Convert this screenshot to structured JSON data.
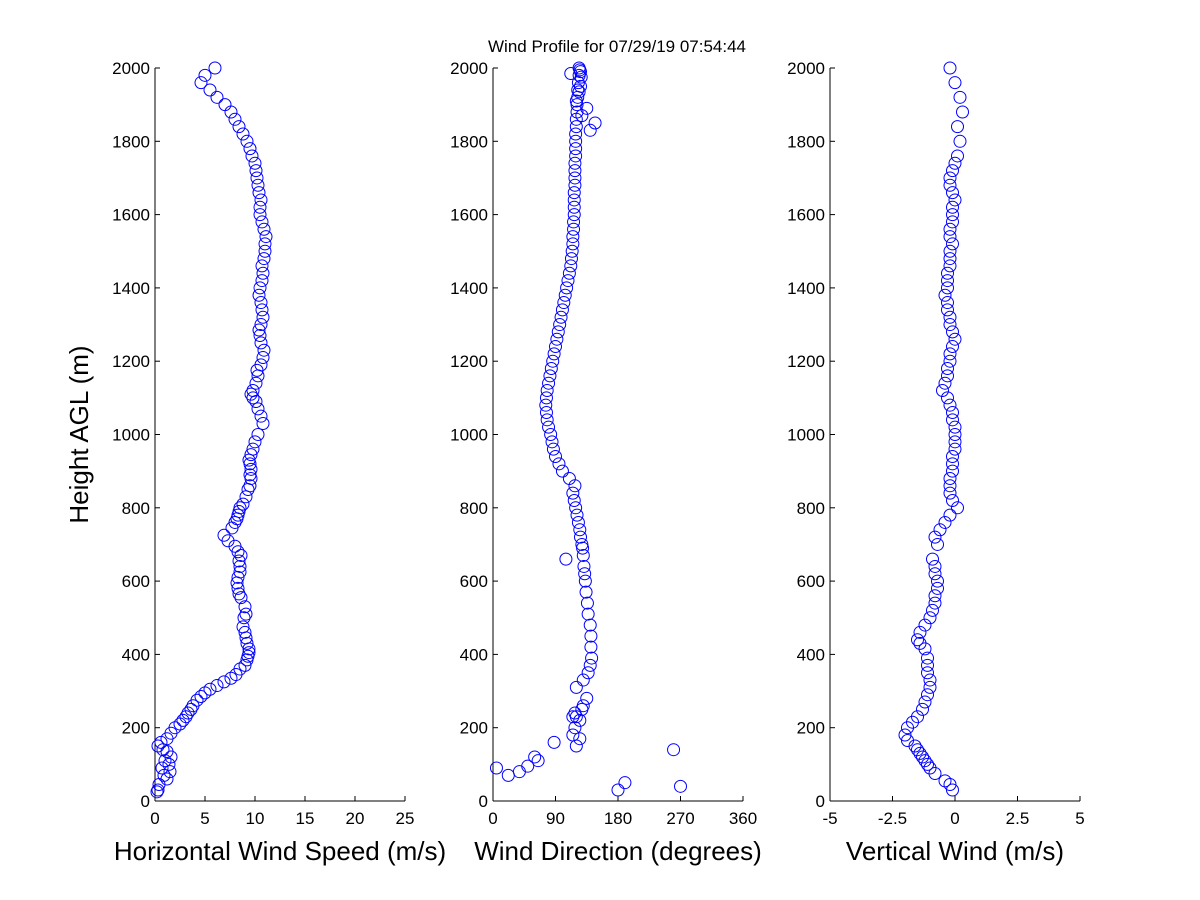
{
  "title": "Wind Profile for  07/29/19 07:54:44",
  "colors": {
    "marker": "#0000ff",
    "axis": "#000000",
    "background": "#ffffff"
  },
  "chart_data": [
    {
      "type": "scatter",
      "xlabel": "Horizontal Wind Speed (m/s)",
      "ylabel": "Height AGL (m)",
      "xlim": [
        0,
        25
      ],
      "ylim": [
        0,
        2000
      ],
      "xticks": [
        0,
        5,
        10,
        15,
        20,
        25
      ],
      "yticks": [
        0,
        200,
        400,
        600,
        800,
        1000,
        1200,
        1400,
        1600,
        1800,
        2000
      ],
      "grid": false,
      "x": [
        0.3,
        0.4,
        0.2,
        1.2,
        0.9,
        1.5,
        0.7,
        1.4,
        1.0,
        1.6,
        1.2,
        0.8,
        0.3,
        0.6,
        1.2,
        1.6,
        2.0,
        2.5,
        2.8,
        3.1,
        3.3,
        3.6,
        3.8,
        4.2,
        4.6,
        5.0,
        5.5,
        6.2,
        6.9,
        7.6,
        8.1,
        8.5,
        9.0,
        9.2,
        9.3,
        9.4,
        9.4,
        9.2,
        9.1,
        9.0,
        8.8,
        8.9,
        9.1,
        9.0,
        8.6,
        8.4,
        8.3,
        8.2,
        8.3,
        8.5,
        8.5,
        8.4,
        8.6,
        8.3,
        8.0,
        7.3,
        6.9,
        7.7,
        8.0,
        8.2,
        8.3,
        8.4,
        8.5,
        8.8,
        9.1,
        9.3,
        9.5,
        9.6,
        9.5,
        9.6,
        9.5,
        9.4,
        9.6,
        9.8,
        10.0,
        10.3,
        10.8,
        10.6,
        10.3,
        10.1,
        9.8,
        9.6,
        9.8,
        10.1,
        10.3,
        10.2,
        10.6,
        10.8,
        10.9,
        10.6,
        10.5,
        10.4,
        10.6,
        10.8,
        10.7,
        10.6,
        10.4,
        10.5,
        10.7,
        10.8,
        10.7,
        10.9,
        11.0,
        11.0,
        11.1,
        10.9,
        10.7,
        10.5,
        10.5,
        10.6,
        10.4,
        10.3,
        10.2,
        10.1,
        10.0,
        9.7,
        9.5,
        9.2,
        8.8,
        8.4,
        8.0,
        7.6,
        7.0,
        6.2,
        5.5,
        4.6,
        5.0,
        6.0
      ],
      "y": [
        30,
        45,
        25,
        60,
        70,
        80,
        90,
        100,
        110,
        120,
        135,
        140,
        150,
        160,
        170,
        185,
        200,
        210,
        220,
        230,
        240,
        250,
        260,
        275,
        285,
        295,
        305,
        315,
        325,
        335,
        345,
        360,
        370,
        385,
        395,
        405,
        415,
        430,
        445,
        460,
        475,
        500,
        510,
        530,
        555,
        565,
        580,
        595,
        610,
        625,
        640,
        655,
        670,
        680,
        695,
        710,
        725,
        745,
        760,
        770,
        780,
        790,
        800,
        810,
        830,
        850,
        860,
        880,
        890,
        905,
        920,
        930,
        945,
        960,
        980,
        1000,
        1030,
        1050,
        1070,
        1090,
        1100,
        1110,
        1120,
        1140,
        1160,
        1175,
        1190,
        1210,
        1230,
        1250,
        1270,
        1285,
        1300,
        1320,
        1340,
        1360,
        1380,
        1400,
        1420,
        1440,
        1460,
        1480,
        1500,
        1520,
        1540,
        1560,
        1580,
        1600,
        1620,
        1640,
        1660,
        1680,
        1700,
        1720,
        1740,
        1760,
        1780,
        1800,
        1820,
        1840,
        1860,
        1880,
        1900,
        1920,
        1940,
        1960,
        1980,
        2000
      ]
    },
    {
      "type": "scatter",
      "xlabel": "Wind Direction (degrees)",
      "xlim": [
        0,
        360
      ],
      "ylim": [
        0,
        2000
      ],
      "xticks": [
        0,
        90,
        180,
        270,
        360
      ],
      "yticks": [
        0,
        200,
        400,
        600,
        800,
        1000,
        1200,
        1400,
        1600,
        1800,
        2000
      ],
      "grid": false,
      "x": [
        5,
        22,
        38,
        50,
        65,
        60,
        88,
        125,
        118,
        115,
        120,
        125,
        120,
        105,
        180,
        190,
        270,
        260,
        135,
        130,
        128,
        118,
        115,
        120,
        130,
        137,
        140,
        142,
        141,
        141,
        140,
        137,
        136,
        134,
        133,
        132,
        131,
        130,
        129,
        128,
        126,
        125,
        123,
        121,
        119,
        117,
        115,
        118,
        110,
        100,
        95,
        90,
        87,
        85,
        83,
        80,
        78,
        77,
        76,
        77,
        78,
        80,
        82,
        84,
        86,
        88,
        90,
        92,
        94,
        96,
        98,
        100,
        102,
        104,
        106,
        108,
        110,
        112,
        113,
        114,
        115,
        115,
        116,
        116,
        117,
        117,
        117,
        117,
        118,
        118,
        118,
        118,
        119,
        119,
        119,
        119,
        120,
        120,
        121,
        121,
        122,
        122,
        123,
        124,
        124,
        126,
        127,
        126,
        124,
        120,
        135,
        128,
        147,
        140,
        125,
        112
      ],
      "y": [
        90,
        70,
        80,
        95,
        110,
        120,
        160,
        170,
        200,
        180,
        150,
        220,
        230,
        660,
        30,
        50,
        40,
        140,
        280,
        260,
        250,
        240,
        230,
        310,
        330,
        350,
        370,
        390,
        420,
        450,
        480,
        510,
        540,
        570,
        600,
        620,
        640,
        670,
        690,
        700,
        720,
        740,
        760,
        780,
        800,
        820,
        840,
        860,
        880,
        900,
        920,
        940,
        960,
        980,
        1000,
        1020,
        1040,
        1060,
        1080,
        1100,
        1120,
        1140,
        1160,
        1180,
        1200,
        1220,
        1240,
        1260,
        1280,
        1300,
        1320,
        1340,
        1360,
        1380,
        1400,
        1420,
        1440,
        1460,
        1480,
        1500,
        1520,
        1540,
        1560,
        1580,
        1600,
        1620,
        1640,
        1660,
        1680,
        1700,
        1720,
        1740,
        1760,
        1780,
        1800,
        1820,
        1840,
        1860,
        1880,
        1900,
        1920,
        1940,
        1960,
        1980,
        2000,
        1990,
        1975,
        1950,
        1935,
        1910,
        1890,
        1870,
        1850,
        1830,
        1995,
        1985
      ]
    },
    {
      "type": "scatter",
      "xlabel": "Vertical Wind (m/s)",
      "xlim": [
        -5,
        5
      ],
      "xticks": [
        -5,
        -2.5,
        0,
        2.5,
        5
      ],
      "ylim": [
        0,
        2000
      ],
      "yticks": [
        0,
        200,
        400,
        600,
        800,
        1000,
        1200,
        1400,
        1600,
        1800,
        2000
      ],
      "grid": false,
      "x": [
        -0.1,
        -0.2,
        -0.4,
        -0.8,
        -1.0,
        -1.2,
        -1.4,
        -1.6,
        -1.3,
        -1.1,
        -1.5,
        -1.9,
        -2.0,
        -1.9,
        -1.7,
        -1.5,
        -1.3,
        -1.2,
        -1.1,
        -1.0,
        -1.0,
        -1.1,
        -1.1,
        -1.1,
        -1.2,
        -1.4,
        -1.5,
        -1.4,
        -1.2,
        -1.0,
        -0.9,
        -0.8,
        -0.8,
        -0.7,
        -0.7,
        -0.8,
        -0.8,
        -0.9,
        -0.7,
        -0.8,
        -0.6,
        -0.4,
        -0.2,
        0.1,
        -0.1,
        -0.2,
        -0.2,
        -0.2,
        -0.1,
        -0.1,
        -0.1,
        0.0,
        0.0,
        0.0,
        0.0,
        -0.1,
        -0.1,
        -0.2,
        -0.3,
        -0.5,
        -0.4,
        -0.3,
        -0.3,
        -0.2,
        -0.2,
        -0.1,
        0.0,
        -0.1,
        -0.2,
        -0.2,
        -0.3,
        -0.3,
        -0.4,
        -0.3,
        -0.3,
        -0.3,
        -0.2,
        -0.2,
        -0.2,
        -0.1,
        -0.2,
        -0.2,
        -0.1,
        -0.1,
        -0.1,
        0.0,
        -0.1,
        -0.2,
        -0.2,
        -0.1,
        0.0,
        0.1,
        0.2,
        0.1,
        0.3,
        0.2,
        0.0,
        -0.2
      ],
      "y": [
        30,
        45,
        55,
        75,
        90,
        110,
        130,
        150,
        120,
        100,
        140,
        165,
        180,
        200,
        215,
        230,
        250,
        270,
        290,
        310,
        330,
        350,
        370,
        390,
        415,
        430,
        440,
        460,
        480,
        500,
        520,
        540,
        560,
        580,
        600,
        620,
        640,
        660,
        700,
        720,
        740,
        760,
        780,
        800,
        820,
        840,
        860,
        880,
        900,
        920,
        940,
        960,
        980,
        1000,
        1020,
        1040,
        1060,
        1080,
        1100,
        1120,
        1140,
        1160,
        1180,
        1200,
        1220,
        1240,
        1260,
        1280,
        1300,
        1320,
        1340,
        1360,
        1380,
        1400,
        1420,
        1440,
        1460,
        1480,
        1500,
        1520,
        1540,
        1560,
        1580,
        1600,
        1620,
        1640,
        1660,
        1680,
        1700,
        1720,
        1740,
        1760,
        1800,
        1840,
        1880,
        1920,
        1960,
        2000
      ]
    }
  ]
}
